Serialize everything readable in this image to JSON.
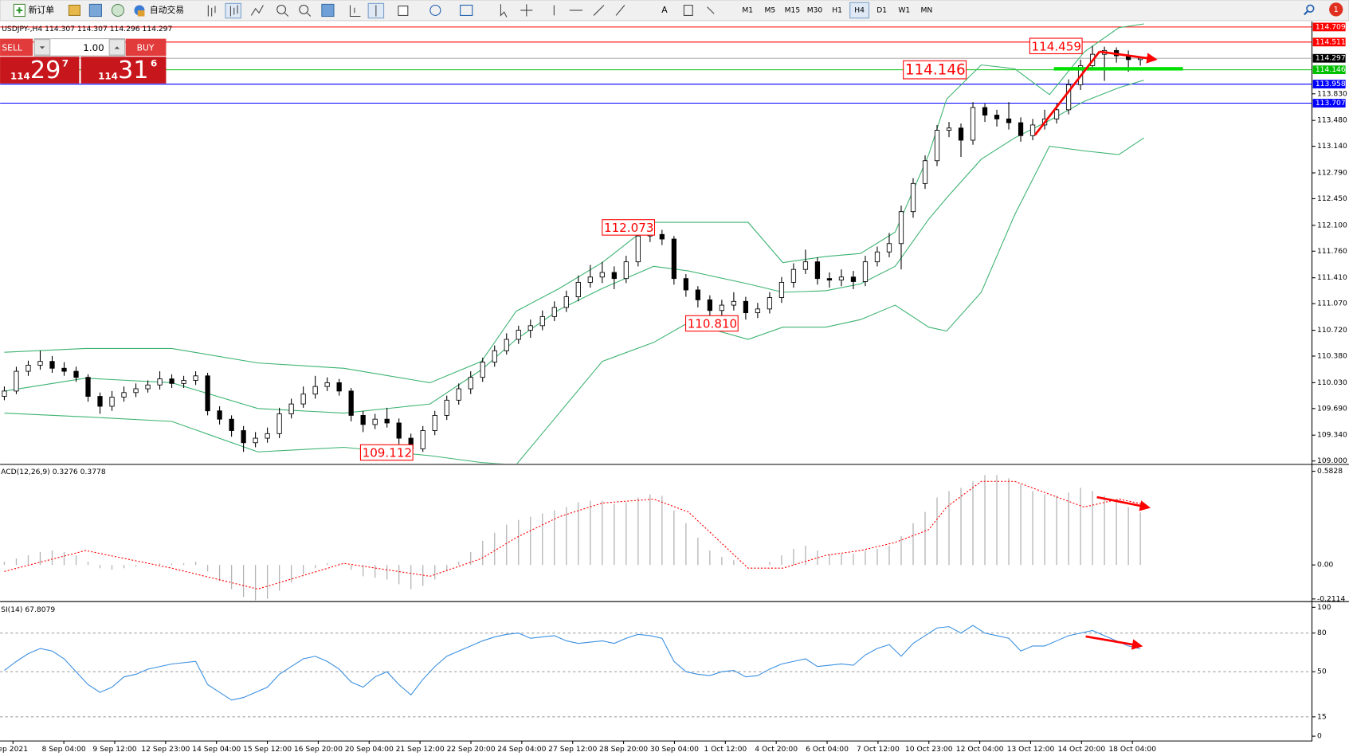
{
  "toolbar": {
    "new_order": "新订单",
    "auto_trading": "自动交易",
    "timeframes": [
      "M1",
      "M5",
      "M15",
      "M30",
      "H1",
      "H4",
      "D1",
      "W1",
      "MN"
    ],
    "active": "H4",
    "notifications": "1"
  },
  "trade_panel": {
    "header": "USDJPY-,H4  114.307 114.307 114.296 114.297",
    "sell": "SELL",
    "buy": "BUY",
    "lot": "1.00",
    "sell_price": [
      "114",
      "29",
      "7"
    ],
    "buy_price": [
      "114",
      "31",
      "6"
    ]
  },
  "main": {
    "ylim": [
      108.966,
      114.77
    ],
    "yticks": [
      {
        "value": 109,
        "label": "109.000"
      },
      {
        "value": 109.34,
        "label": "109.340"
      },
      {
        "value": 109.69,
        "label": "109.690"
      },
      {
        "value": 110.03,
        "label": "110.030"
      },
      {
        "value": 110.38,
        "label": "110.380"
      },
      {
        "value": 110.72,
        "label": "110.720"
      },
      {
        "value": 111.07,
        "label": "111.070"
      },
      {
        "value": 111.41,
        "label": "111.410"
      },
      {
        "value": 111.76,
        "label": "111.760"
      },
      {
        "value": 112.1,
        "label": "112.100"
      },
      {
        "value": 112.45,
        "label": "112.450"
      },
      {
        "value": 112.79,
        "label": "112.790"
      },
      {
        "value": 113.14,
        "label": "113.140"
      },
      {
        "value": 113.48,
        "label": "113.480"
      },
      {
        "value": 113.83,
        "label": "113.830"
      }
    ],
    "bid": 114.297,
    "levels": [
      {
        "value": 114.709,
        "color": "#ff0000"
      },
      {
        "value": 114.511,
        "color": "#ff0000"
      },
      {
        "value": 114.146,
        "color": "#00c000"
      },
      {
        "value": 113.958,
        "color": "#0000ff"
      },
      {
        "value": 113.707,
        "color": "#0000ff"
      }
    ],
    "annotations": [
      {
        "label": "114.459",
        "value": 114.459
      },
      {
        "label": "114.146",
        "value": 114.146
      },
      {
        "label": "112.073",
        "value": 112.073
      },
      {
        "label": "110.810",
        "value": 110.81
      },
      {
        "label": "109.112",
        "value": 109.112
      }
    ],
    "candles": {
      "open": [
        109.85,
        109.92,
        110.18,
        110.26,
        110.31,
        110.22,
        110.18,
        110.1,
        109.85,
        109.72,
        109.84,
        109.9,
        109.95,
        110.0,
        110.08,
        110.02,
        110.06,
        110.12,
        109.66,
        109.55,
        109.4,
        109.24,
        109.3,
        109.36,
        109.62,
        109.75,
        109.88,
        109.98,
        110.03,
        109.92,
        109.6,
        109.48,
        109.55,
        109.5,
        109.3,
        109.16,
        109.4,
        109.6,
        109.8,
        109.95,
        110.1,
        110.3,
        110.45,
        110.6,
        110.72,
        110.78,
        110.9,
        111.02,
        111.16,
        111.35,
        111.42,
        111.48,
        111.4,
        111.62,
        111.96,
        111.98,
        111.92,
        111.4,
        111.25,
        111.12,
        110.98,
        111.05,
        111.1,
        110.95,
        111.0,
        111.15,
        111.35,
        111.52,
        111.62,
        111.4,
        111.38,
        111.42,
        111.36,
        111.62,
        111.75,
        111.86,
        112.28,
        112.65,
        112.95,
        113.35,
        113.38,
        113.22,
        113.65,
        113.55,
        113.5,
        113.45,
        113.28,
        113.42,
        113.5,
        113.62,
        113.95,
        114.2,
        114.35,
        114.4,
        114.33,
        114.28
      ],
      "high": [
        109.98,
        110.24,
        110.32,
        110.45,
        110.38,
        110.3,
        110.24,
        110.14,
        109.9,
        109.92,
        109.98,
        110.02,
        110.06,
        110.18,
        110.14,
        110.12,
        110.18,
        110.16,
        109.72,
        109.6,
        109.46,
        109.38,
        109.44,
        109.7,
        109.82,
        109.98,
        110.12,
        110.1,
        110.08,
        109.96,
        109.66,
        109.62,
        109.7,
        109.56,
        109.36,
        109.46,
        109.66,
        109.86,
        110.02,
        110.18,
        110.36,
        110.52,
        110.68,
        110.78,
        110.86,
        110.98,
        111.1,
        111.24,
        111.44,
        111.58,
        111.62,
        111.56,
        111.7,
        112.02,
        112.073,
        112.04,
        111.96,
        111.46,
        111.3,
        111.18,
        111.12,
        111.22,
        111.16,
        111.08,
        111.22,
        111.42,
        111.6,
        111.78,
        111.68,
        111.48,
        111.52,
        111.5,
        111.7,
        111.82,
        112.0,
        112.36,
        112.72,
        113.02,
        113.42,
        113.46,
        113.44,
        113.72,
        113.7,
        113.62,
        113.72,
        113.52,
        113.5,
        113.62,
        113.7,
        114.02,
        114.28,
        114.459,
        114.45,
        114.44,
        114.4,
        114.307
      ],
      "low": [
        109.8,
        109.88,
        110.12,
        110.2,
        110.16,
        110.12,
        110.04,
        109.78,
        109.62,
        109.66,
        109.78,
        109.84,
        109.9,
        109.94,
        109.96,
        109.96,
        110.0,
        109.6,
        109.48,
        109.32,
        109.12,
        109.18,
        109.24,
        109.3,
        109.56,
        109.7,
        109.82,
        109.92,
        109.86,
        109.52,
        109.38,
        109.42,
        109.44,
        109.22,
        109.112,
        109.12,
        109.34,
        109.54,
        109.74,
        109.88,
        110.04,
        110.24,
        110.4,
        110.54,
        110.62,
        110.72,
        110.84,
        110.96,
        111.1,
        111.28,
        111.34,
        111.26,
        111.34,
        111.56,
        111.88,
        111.84,
        111.32,
        111.16,
        111.02,
        110.81,
        110.9,
        110.98,
        110.86,
        110.88,
        110.94,
        111.08,
        111.28,
        111.46,
        111.32,
        111.28,
        111.3,
        111.26,
        111.3,
        111.56,
        111.68,
        111.52,
        112.2,
        112.58,
        112.88,
        113.26,
        113.0,
        113.16,
        113.46,
        113.4,
        113.36,
        113.2,
        113.22,
        113.36,
        113.44,
        113.56,
        113.88,
        114.14,
        114.0,
        114.24,
        114.12,
        114.2
      ],
      "close": [
        109.92,
        110.18,
        110.26,
        110.31,
        110.22,
        110.18,
        110.1,
        109.85,
        109.72,
        109.84,
        109.9,
        109.95,
        110.0,
        110.08,
        110.02,
        110.06,
        110.12,
        109.66,
        109.55,
        109.4,
        109.24,
        109.3,
        109.36,
        109.62,
        109.75,
        109.88,
        109.98,
        110.03,
        109.92,
        109.6,
        109.48,
        109.55,
        109.5,
        109.3,
        109.16,
        109.4,
        109.6,
        109.8,
        109.95,
        110.1,
        110.3,
        110.45,
        110.6,
        110.72,
        110.78,
        110.9,
        111.02,
        111.16,
        111.35,
        111.42,
        111.48,
        111.4,
        111.62,
        111.96,
        111.98,
        111.92,
        111.4,
        111.25,
        111.12,
        110.98,
        111.05,
        111.1,
        110.95,
        111.0,
        111.15,
        111.35,
        111.52,
        111.62,
        111.4,
        111.38,
        111.42,
        111.36,
        111.62,
        111.75,
        111.86,
        112.28,
        112.65,
        112.95,
        113.35,
        113.38,
        113.22,
        113.65,
        113.55,
        113.5,
        113.45,
        113.28,
        113.42,
        113.5,
        113.62,
        113.95,
        114.2,
        114.35,
        114.4,
        114.33,
        114.28,
        114.297
      ]
    },
    "bands": {
      "upper": [
        110.43,
        110.48,
        110.48,
        110.29,
        110.22,
        110.03,
        110.31,
        110.97,
        111.27,
        111.61,
        112.14,
        112.14,
        112.14,
        111.61,
        111.69,
        111.73,
        112.01,
        113.03,
        113.76,
        114.21,
        114.16,
        113.82,
        114.38,
        114.7,
        114.75
      ],
      "middle": [
        109.92,
        110.09,
        110.03,
        109.69,
        109.63,
        109.75,
        110.2,
        110.6,
        110.99,
        111.27,
        111.56,
        111.5,
        111.33,
        111.22,
        111.24,
        111.33,
        111.56,
        112.18,
        112.46,
        112.97,
        113.25,
        113.48,
        113.73,
        113.91,
        114.01
      ],
      "lower": [
        109.63,
        109.58,
        109.52,
        109.12,
        109.18,
        109.07,
        108.98,
        108.95,
        109.63,
        110.31,
        110.56,
        110.82,
        110.6,
        110.76,
        110.76,
        110.86,
        111.05,
        110.76,
        110.71,
        111.22,
        112.24,
        113.14,
        113.08,
        113.03,
        113.25
      ]
    }
  },
  "sample_x": [
    0,
    6.8,
    14,
    21.2,
    28.4,
    35.6,
    39.9,
    42.8,
    46.4,
    50,
    54.3,
    57.2,
    62.2,
    65.1,
    68.7,
    71.6,
    74.5,
    77.3,
    78.8,
    81.7,
    84.5,
    87.4,
    90.3,
    93.2,
    95.3
  ],
  "macd": {
    "label": "ACD(12,26,9) 0.3276 0.3778",
    "ylim": [
      -0.22,
      0.62
    ],
    "yticks": [
      0.5828,
      {
        "value": 0,
        "label": "0.00"
      },
      -0.2114
    ],
    "histogram": [
      0.02,
      0.04,
      0.06,
      0.08,
      0.09,
      0.08,
      0.06,
      0.02,
      -0.02,
      -0.03,
      -0.02,
      -0.01,
      0.0,
      0.01,
      0.01,
      0.01,
      0.02,
      -0.04,
      -0.1,
      -0.15,
      -0.2,
      -0.22,
      -0.21,
      -0.16,
      -0.11,
      -0.06,
      -0.02,
      0.01,
      0.01,
      -0.03,
      -0.07,
      -0.08,
      -0.09,
      -0.12,
      -0.15,
      -0.13,
      -0.09,
      -0.04,
      0.02,
      0.08,
      0.15,
      0.2,
      0.25,
      0.28,
      0.3,
      0.32,
      0.34,
      0.36,
      0.39,
      0.4,
      0.4,
      0.38,
      0.39,
      0.42,
      0.44,
      0.43,
      0.34,
      0.26,
      0.17,
      0.09,
      0.05,
      0.03,
      0.0,
      0.0,
      0.02,
      0.06,
      0.1,
      0.12,
      0.09,
      0.07,
      0.07,
      0.07,
      0.09,
      0.1,
      0.12,
      0.18,
      0.26,
      0.33,
      0.42,
      0.46,
      0.48,
      0.52,
      0.56,
      0.56,
      0.54,
      0.5,
      0.46,
      0.44,
      0.43,
      0.45,
      0.48,
      0.46,
      0.43,
      0.4,
      0.36,
      0.3276
    ],
    "signal": [
      -0.04,
      0.09,
      -0.02,
      -0.15,
      0.01,
      -0.07,
      0.04,
      0.17,
      0.3,
      0.385,
      0.41,
      0.33,
      -0.02,
      -0.02,
      0.06,
      0.09,
      0.14,
      0.22,
      0.36,
      0.52,
      0.52,
      0.44,
      0.36,
      0.41,
      0.3778
    ]
  },
  "rsi": {
    "label": "SI(14) 67.8079",
    "ylim": [
      -2.7,
      103.4
    ],
    "yticks": [
      100,
      80,
      50,
      15,
      0
    ],
    "levels": [
      80,
      50,
      15
    ],
    "values": [
      51,
      58,
      64,
      68,
      66,
      60,
      50,
      40,
      34,
      38,
      46,
      48,
      52,
      54,
      56,
      57,
      58,
      40,
      34,
      28,
      30,
      34,
      38,
      48,
      54,
      60,
      62,
      58,
      52,
      42,
      38,
      46,
      50,
      40,
      32,
      44,
      54,
      62,
      66,
      70,
      74,
      77,
      79,
      80,
      76,
      77,
      78,
      74,
      72,
      73,
      74,
      72,
      76,
      79,
      78,
      76,
      58,
      50,
      48,
      47,
      50,
      51,
      46,
      47,
      52,
      56,
      58,
      60,
      54,
      55,
      56,
      55,
      63,
      68,
      71,
      62,
      72,
      78,
      84,
      85,
      80,
      86,
      80,
      78,
      76,
      66,
      70,
      70,
      74,
      78,
      80,
      82,
      78,
      74,
      70,
      67.8079
    ]
  },
  "x_labels": [
    "ep 2021",
    "8 Sep 04:00",
    "9 Sep 12:00",
    "12 Sep 23:00",
    "14 Sep 04:00",
    "15 Sep 12:00",
    "16 Sep 20:00",
    "20 Sep 04:00",
    "21 Sep 12:00",
    "22 Sep 20:00",
    "24 Sep 04:00",
    "27 Sep 12:00",
    "28 Sep 20:00",
    "30 Sep 04:00",
    "1 Oct 12:00",
    "4 Oct 20:00",
    "6 Oct 04:00",
    "7 Oct 12:00",
    "10 Oct 23:00",
    "12 Oct 04:00",
    "13 Oct 12:00",
    "14 Oct 20:00",
    "18 Oct 04:00"
  ]
}
